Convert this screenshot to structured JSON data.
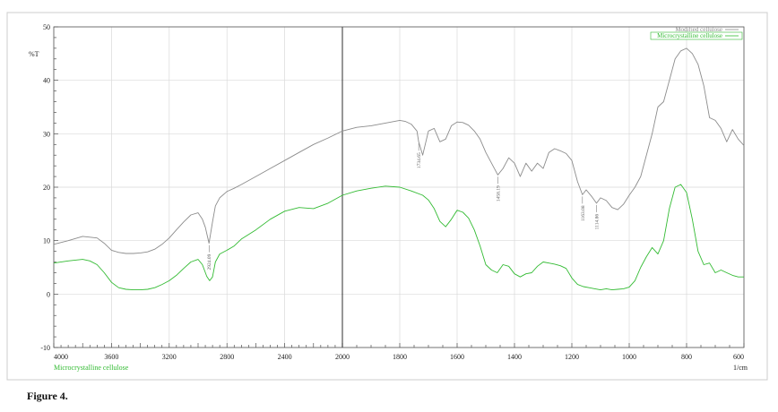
{
  "caption": "Figure 4.",
  "chart_data": {
    "type": "line",
    "title": "",
    "ylabel": "%T",
    "xunit": "1/cm",
    "x_axis_series_label": "Microcrystalline cellulose",
    "xlim": [
      4000,
      600
    ],
    "ylim": [
      -10,
      50
    ],
    "x_ticks": [
      4000,
      3600,
      3200,
      2800,
      2400,
      2000,
      1800,
      1600,
      1400,
      1200,
      1000,
      800,
      600
    ],
    "y_ticks": [
      -10,
      0,
      10,
      20,
      30,
      40,
      50
    ],
    "grid": true,
    "legend_position": "top-right",
    "colors": {
      "modified": "#8c8c8c",
      "micro": "#33bb33",
      "axis": "#000000",
      "grid": "#d9d9d9"
    },
    "series": [
      {
        "name": "Modified cellulose",
        "x": [
          4000,
          3900,
          3800,
          3700,
          3650,
          3600,
          3550,
          3500,
          3450,
          3400,
          3350,
          3300,
          3250,
          3200,
          3150,
          3100,
          3050,
          3000,
          2970,
          2950,
          2924,
          2900,
          2880,
          2850,
          2800,
          2750,
          2700,
          2600,
          2500,
          2400,
          2300,
          2200,
          2100,
          2000,
          1950,
          1900,
          1850,
          1800,
          1780,
          1760,
          1740,
          1734,
          1720,
          1700,
          1680,
          1660,
          1640,
          1620,
          1600,
          1580,
          1560,
          1540,
          1520,
          1500,
          1480,
          1458,
          1440,
          1420,
          1400,
          1380,
          1360,
          1340,
          1320,
          1300,
          1280,
          1260,
          1240,
          1220,
          1200,
          1180,
          1163,
          1150,
          1130,
          1114,
          1100,
          1080,
          1060,
          1040,
          1020,
          1000,
          980,
          960,
          940,
          920,
          900,
          880,
          860,
          840,
          820,
          800,
          780,
          760,
          740,
          720,
          700,
          680,
          660,
          640,
          620,
          600
        ],
        "y": [
          9.3,
          10,
          10.8,
          10.5,
          9.5,
          8.2,
          7.8,
          7.6,
          7.6,
          7.7,
          7.9,
          8.4,
          9.3,
          10.5,
          12,
          13.5,
          14.8,
          15.2,
          14,
          12.5,
          9.5,
          13.5,
          16.5,
          18,
          19.2,
          19.8,
          20.5,
          22,
          23.5,
          25,
          26.5,
          28,
          29.2,
          30.5,
          31.2,
          31.5,
          32,
          32.5,
          32.3,
          31.8,
          30.5,
          28.5,
          26,
          30.5,
          31,
          28.5,
          29,
          31.5,
          32.2,
          32.1,
          31.6,
          30.5,
          29,
          26.5,
          24.5,
          22.3,
          23.5,
          25.5,
          24.5,
          22,
          24.5,
          23,
          24.5,
          23.5,
          26.5,
          27.2,
          26.8,
          26.3,
          25,
          21,
          18.6,
          19.5,
          18.2,
          17,
          18,
          17.5,
          16.2,
          15.8,
          16.8,
          18.5,
          20,
          22,
          26,
          30,
          35,
          36,
          40,
          44,
          45.5,
          46,
          45,
          43,
          39,
          33,
          32.5,
          31,
          28.5,
          30.8,
          29,
          27.8
        ],
        "annotations": [
          {
            "x": 2924,
            "label": "2924.09"
          },
          {
            "x": 1734,
            "label": "1734.65"
          },
          {
            "x": 1458,
            "label": "1458.19"
          },
          {
            "x": 1163,
            "label": "1163.08"
          },
          {
            "x": 1114,
            "label": "1114.86"
          }
        ]
      },
      {
        "name": "Microcrystalline cellulose",
        "x": [
          4000,
          3900,
          3800,
          3750,
          3700,
          3650,
          3600,
          3550,
          3500,
          3450,
          3400,
          3350,
          3300,
          3250,
          3200,
          3150,
          3100,
          3050,
          3000,
          2970,
          2940,
          2920,
          2900,
          2880,
          2850,
          2800,
          2750,
          2700,
          2600,
          2500,
          2400,
          2300,
          2200,
          2100,
          2000,
          1950,
          1900,
          1850,
          1800,
          1760,
          1720,
          1700,
          1680,
          1660,
          1640,
          1620,
          1600,
          1580,
          1560,
          1540,
          1520,
          1500,
          1480,
          1460,
          1440,
          1420,
          1400,
          1380,
          1360,
          1340,
          1320,
          1300,
          1280,
          1260,
          1240,
          1220,
          1200,
          1180,
          1160,
          1140,
          1120,
          1100,
          1080,
          1060,
          1040,
          1020,
          1000,
          980,
          960,
          940,
          920,
          900,
          880,
          860,
          840,
          820,
          800,
          780,
          760,
          740,
          720,
          700,
          680,
          660,
          640,
          620,
          600
        ],
        "y": [
          5.8,
          6.2,
          6.5,
          6.2,
          5.5,
          4,
          2.2,
          1.2,
          0.9,
          0.8,
          0.8,
          0.9,
          1.2,
          1.8,
          2.5,
          3.5,
          4.8,
          6,
          6.5,
          5.5,
          3.3,
          2.5,
          3.2,
          6,
          7.5,
          8.2,
          9,
          10.3,
          12,
          14,
          15.5,
          16.2,
          16,
          17,
          18.5,
          19.3,
          19.8,
          20.2,
          20,
          19.3,
          18.5,
          17.6,
          16,
          13.6,
          12.6,
          14,
          15.7,
          15.3,
          14.2,
          12,
          9,
          5.5,
          4.5,
          4,
          5.5,
          5.2,
          3.8,
          3.2,
          3.8,
          4,
          5.2,
          6,
          5.8,
          5.6,
          5.3,
          4.8,
          3,
          1.8,
          1.4,
          1.2,
          1,
          0.8,
          1,
          0.8,
          0.9,
          1,
          1.3,
          2.5,
          5,
          7,
          8.7,
          7.5,
          10,
          16,
          20,
          20.5,
          19,
          14,
          8,
          5.5,
          5.8,
          4,
          4.5,
          4,
          3.5,
          3.2,
          3.2
        ]
      }
    ]
  }
}
